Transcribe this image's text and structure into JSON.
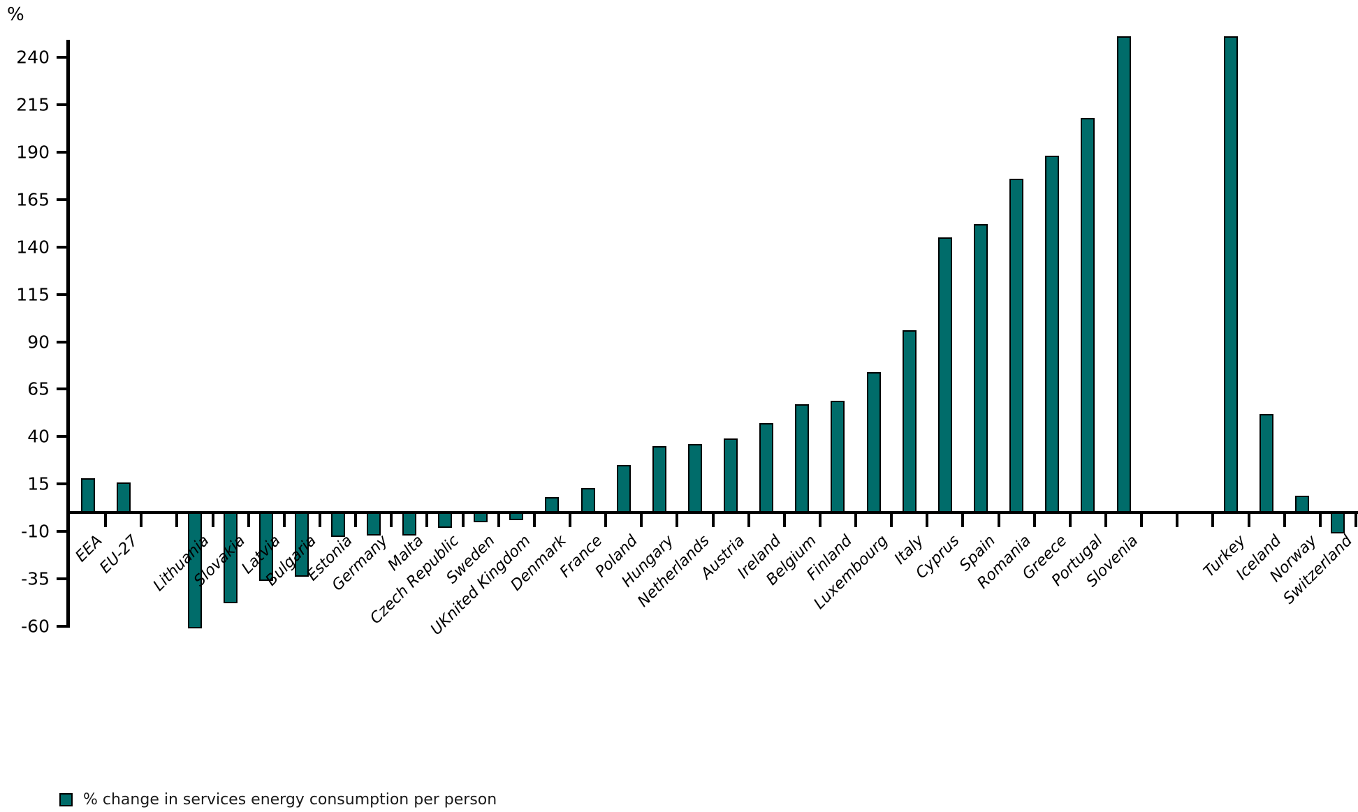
{
  "chart_data": {
    "type": "bar",
    "title": "",
    "ylabel": "%",
    "xlabel": "",
    "grid": false,
    "legend_position": "bottom-left",
    "bar_color": "#006C6A",
    "bar_outline_color": "#000000",
    "axis_color": "#000000",
    "ylim": [
      -65,
      255
    ],
    "y_ticks": [
      240,
      215,
      190,
      165,
      140,
      115,
      90,
      65,
      40,
      15,
      -10,
      -35,
      -60
    ],
    "categories": [
      "EEA",
      "EU-27",
      "Lithuania",
      "Slovakia",
      "Latvia",
      "Bulgaria",
      "Estonia",
      "Germany",
      "Malta",
      "Czech Republic",
      "Sweden",
      "UKnited Kingdom",
      "Denmark",
      "France",
      "Poland",
      "Hungary",
      "Netherlands",
      "Austria",
      "Ireland",
      "Belgium",
      "Finland",
      "Luxembourg",
      "Italy",
      "Cyprus",
      "Spain",
      "Romania",
      "Greece",
      "Portugal",
      "Slovenia",
      "Turkey",
      "Iceland",
      "Norway",
      "Switzerland"
    ],
    "values": [
      18,
      16,
      -61,
      -48,
      -36,
      -34,
      -13,
      -12,
      -12,
      -8,
      -5,
      -4,
      8,
      13,
      25,
      35,
      36,
      39,
      47,
      57,
      59,
      74,
      96,
      145,
      152,
      176,
      188,
      208,
      251,
      251,
      52,
      9,
      -11
    ],
    "gaps_after": {
      "EU-27": 1,
      "Slovenia": 2
    },
    "series": [
      {
        "name": "% change in services energy consumption per person"
      }
    ]
  },
  "legend": {
    "label": "% change in services energy consumption per person"
  }
}
